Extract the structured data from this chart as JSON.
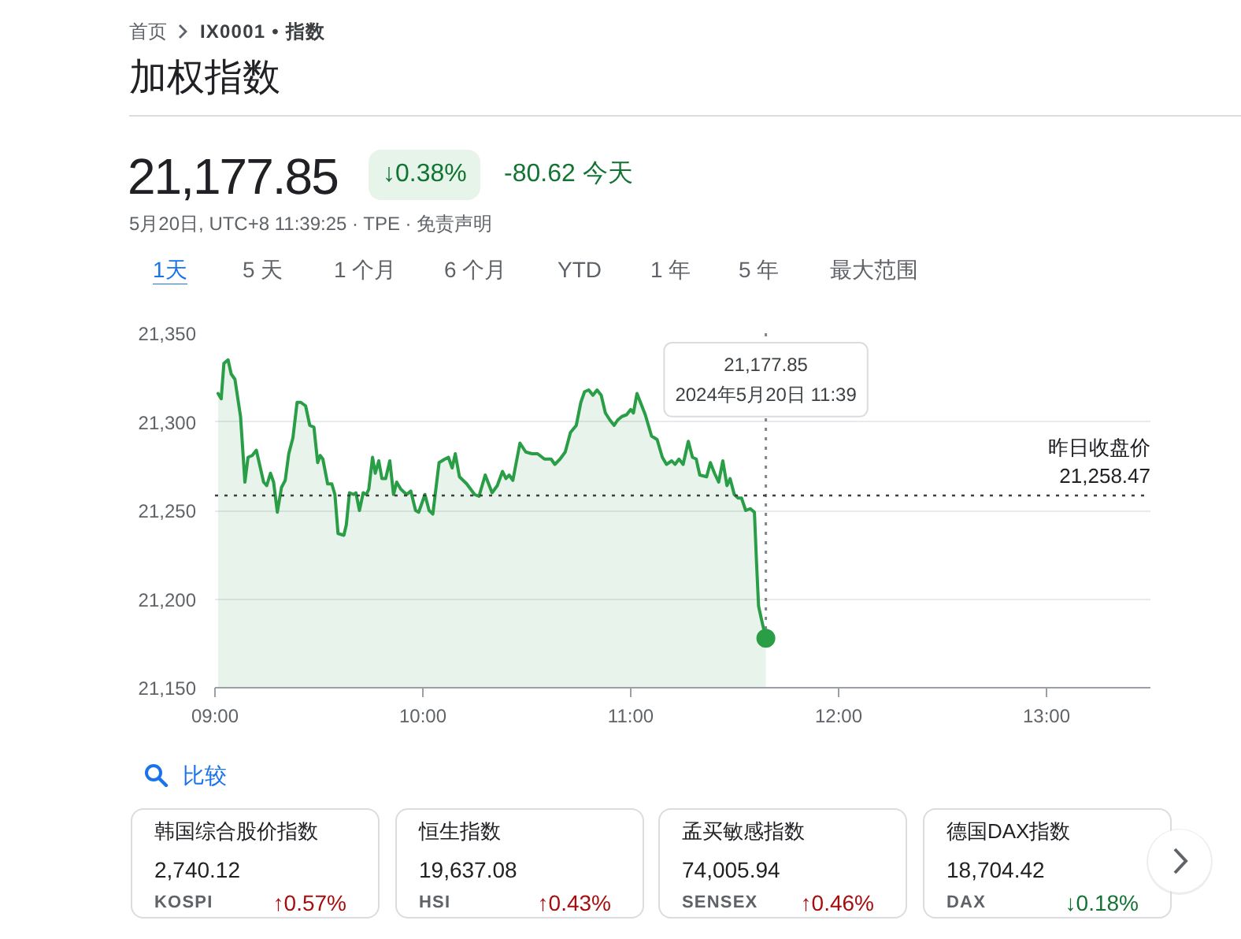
{
  "chart_data": [
    {
      "type": "area",
      "title": "加权指数",
      "annotations": [
        "首页",
        "IX0001 • 指数",
        "21,177.85",
        "↓0.38%",
        "-80.62 今天",
        "5月20日, UTC+8 11:39:25 · TPE · 免责声明",
        "1天",
        "5 天",
        "1 个月",
        "6 个月",
        "YTD",
        "1 年",
        "5 年",
        "最大范围",
        {
          "text": "21,177.85\n2024年5月20日 11:39",
          "x": 11.65,
          "y": 21177.85
        }
      ],
      "xlim": [
        9,
        13.5
      ],
      "xticks": [
        {
          "value": 9,
          "label": "09:00"
        },
        {
          "value": 10,
          "label": "10:00"
        },
        {
          "value": 11,
          "label": "11:00"
        },
        {
          "value": 12,
          "label": "12:00"
        },
        {
          "value": 13,
          "label": "13:00"
        }
      ],
      "ylim": [
        21150,
        21350
      ],
      "yticks": [
        {
          "value": 21150,
          "label": "21,150"
        },
        {
          "value": 21200,
          "label": "21,200"
        },
        {
          "value": 21250,
          "label": "21,250"
        },
        {
          "value": 21300,
          "label": "21,300"
        },
        {
          "value": 21350,
          "label": "21,350"
        }
      ],
      "grid": "y",
      "ref_lines": [
        {
          "axis": "y",
          "value": 21258.47,
          "label": "昨日收盘价 21,258.47",
          "color": "#3c4043",
          "line_style": "dotted"
        }
      ],
      "series": [
        {
          "type": "area",
          "color": "#2a9d47",
          "x": [
            9.015,
            9.03,
            9.043,
            9.063,
            9.078,
            9.096,
            9.123,
            9.144,
            9.159,
            9.179,
            9.199,
            9.234,
            9.249,
            9.267,
            9.282,
            9.3,
            9.32,
            9.338,
            9.355,
            9.375,
            9.395,
            9.413,
            9.436,
            9.456,
            9.476,
            9.494,
            9.506,
            9.519,
            9.542,
            9.562,
            9.577,
            9.592,
            9.62,
            9.632,
            9.647,
            9.667,
            9.678,
            9.695,
            9.713,
            9.728,
            9.74,
            9.758,
            9.771,
            9.788,
            9.803,
            9.821,
            9.841,
            9.859,
            9.874,
            9.894,
            9.922,
            9.942,
            9.965,
            9.98,
            10.01,
            10.03,
            10.048,
            10.078,
            10.106,
            10.123,
            10.141,
            10.156,
            10.176,
            10.211,
            10.249,
            10.27,
            10.3,
            10.333,
            10.358,
            10.383,
            10.4,
            10.415,
            10.433,
            10.467,
            10.495,
            10.525,
            10.552,
            10.585,
            10.617,
            10.635,
            10.66,
            10.685,
            10.71,
            10.738,
            10.76,
            10.778,
            10.798,
            10.818,
            10.838,
            10.858,
            10.878,
            10.9,
            10.92,
            10.937,
            10.957,
            10.98,
            11.0,
            11.013,
            11.03,
            11.05,
            11.07,
            11.1,
            11.127,
            11.152,
            11.172,
            11.197,
            11.213,
            11.232,
            11.252,
            11.277,
            11.297,
            11.315,
            11.332,
            11.365,
            11.383,
            11.403,
            11.423,
            11.443,
            11.463,
            11.478,
            11.498,
            11.517,
            11.533,
            11.553,
            11.575,
            11.595,
            11.605,
            11.615,
            11.63,
            11.65
          ],
          "values": [
            21316,
            21313,
            21333,
            21335,
            21327,
            21324,
            21303,
            21266,
            21280,
            21281,
            21284,
            21266,
            21264,
            21271,
            21266,
            21249,
            21263,
            21267,
            21282,
            21291,
            21311,
            21311,
            21309,
            21298,
            21297,
            21277,
            21281,
            21279,
            21265,
            21265,
            21259,
            21237,
            21236,
            21242,
            21260,
            21259,
            21260,
            21250,
            21260,
            21259,
            21262,
            21280,
            21271,
            21278,
            21268,
            21268,
            21278,
            21259,
            21266,
            21262,
            21259,
            21261,
            21250,
            21249,
            21259,
            21250,
            21248,
            21277,
            21279,
            21280,
            21274,
            21282,
            21269,
            21265,
            21259,
            21258,
            21270,
            21260,
            21264,
            21272,
            21268,
            21270,
            21267,
            21288,
            21283,
            21282,
            21282,
            21279,
            21279,
            21276,
            21279,
            21283,
            21294,
            21298,
            21311,
            21317,
            21318,
            21315,
            21318,
            21315,
            21305,
            21301,
            21298,
            21301,
            21303,
            21304,
            21307,
            21305,
            21316,
            21310,
            21304,
            21292,
            21290,
            21280,
            21276,
            21278,
            21276,
            21279,
            21276,
            21289,
            21280,
            21279,
            21270,
            21269,
            21277,
            21271,
            21266,
            21278,
            21264,
            21268,
            21259,
            21257,
            21257,
            21250,
            21251,
            21249,
            21221,
            21196,
            21188,
            21177.85
          ]
        },
        {
          "type": "scatter",
          "color": "#2a9d47",
          "marker": "circle",
          "x": [
            11.65
          ],
          "values": [
            21177.85
          ]
        }
      ]
    },
    {
      "type": "other",
      "title": "比较",
      "categories": [
        "韩国综合股价指数",
        "恒生指数",
        "孟买敏感指数",
        "德国DAX指数"
      ],
      "annotations": [
        "2,740.12",
        "KOSPI",
        "↑0.57%",
        "19,637.08",
        "HSI",
        "↑0.43%",
        "74,005.94",
        "SENSEX",
        "↑0.46%",
        "18,704.42",
        "DAX",
        "↓0.18%"
      ],
      "colors": [
        "#a50e0e",
        "#a50e0e",
        "#a50e0e",
        "#137333"
      ]
    }
  ]
}
